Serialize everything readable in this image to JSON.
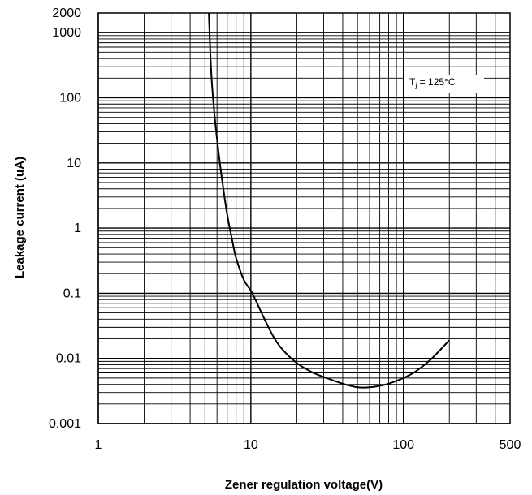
{
  "chart_data": {
    "type": "line",
    "xlabel": "Zener regulation voltage(V)",
    "ylabel": "Leakage current (uA)",
    "xscale": "log",
    "yscale": "log",
    "xlim": [
      1,
      500
    ],
    "ylim": [
      0.001,
      2000
    ],
    "x_ticks": [
      1,
      10,
      100,
      500
    ],
    "x_tick_labels": [
      "1",
      "10",
      "100",
      "500"
    ],
    "y_ticks": [
      0.001,
      0.01,
      0.1,
      1,
      10,
      100,
      1000,
      2000
    ],
    "y_tick_labels": [
      "0.001",
      "0.01",
      "0.1",
      "1",
      "10",
      "100",
      "1000",
      "2000"
    ],
    "grid": true,
    "annotation": {
      "prefix": "T",
      "subscript": "j",
      "suffix": " = 125°C"
    },
    "series": [
      {
        "x": [
          5.3,
          5.5,
          5.8,
          6.2,
          6.6,
          7.0,
          7.5,
          8.0,
          9.0,
          10,
          11,
          12,
          14,
          16,
          20,
          25,
          30,
          40,
          50,
          60,
          70,
          80,
          100,
          120,
          150,
          200
        ],
        "y": [
          2000,
          240,
          50,
          12,
          4,
          1.6,
          0.7,
          0.35,
          0.16,
          0.11,
          0.07,
          0.045,
          0.022,
          0.014,
          0.0085,
          0.0062,
          0.0052,
          0.0041,
          0.0036,
          0.0036,
          0.0038,
          0.0041,
          0.005,
          0.0063,
          0.0095,
          0.019
        ]
      }
    ]
  }
}
